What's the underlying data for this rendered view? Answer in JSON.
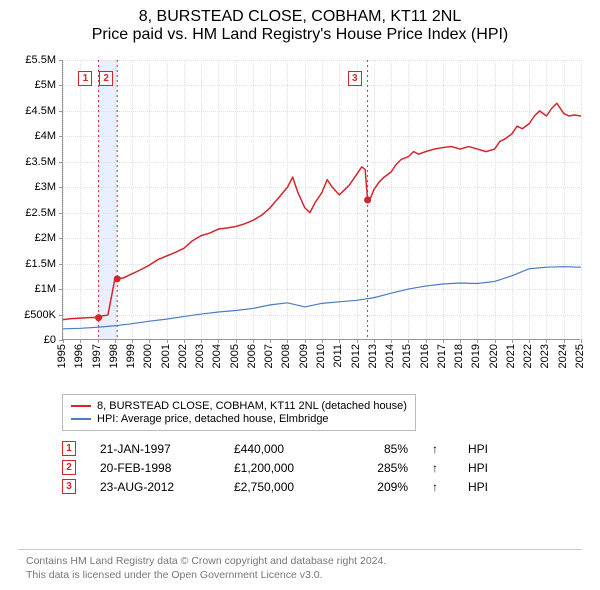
{
  "title": {
    "line1": "8, BURSTEAD CLOSE, COBHAM, KT11 2NL",
    "line2": "Price paid vs. HM Land Registry's House Price Index (HPI)"
  },
  "chart": {
    "type": "line",
    "background_color": "#ffffff",
    "grid_color": "#e0e0e0",
    "axis_color": "#999999",
    "x": {
      "min": 1995,
      "max": 2025,
      "tick_step": 1,
      "label_fontsize": 11
    },
    "y": {
      "min": 0,
      "max": 5500000,
      "tick_step": 500000,
      "tick_labels": [
        "£0",
        "£500K",
        "£1M",
        "£1.5M",
        "£2M",
        "£2.5M",
        "£3M",
        "£3.5M",
        "£4M",
        "£4.5M",
        "£5M",
        "£5.5M"
      ],
      "label_fontsize": 11
    },
    "band": {
      "x_from": 1997.06,
      "x_to": 1998.14,
      "color": "#e8efff"
    },
    "series": [
      {
        "id": "property",
        "label": "8, BURSTEAD CLOSE, COBHAM, KT11 2NL (detached house)",
        "color": "#d4252d",
        "line_width": 1.5,
        "points": [
          [
            1995.0,
            400000
          ],
          [
            1995.5,
            420000
          ],
          [
            1996.0,
            430000
          ],
          [
            1996.5,
            440000
          ],
          [
            1997.0,
            445000
          ],
          [
            1997.06,
            440000
          ],
          [
            1997.2,
            470000
          ],
          [
            1997.6,
            490000
          ],
          [
            1998.0,
            1190000
          ],
          [
            1998.14,
            1200000
          ],
          [
            1998.5,
            1220000
          ],
          [
            1999.0,
            1300000
          ],
          [
            1999.5,
            1380000
          ],
          [
            2000.0,
            1470000
          ],
          [
            2000.5,
            1580000
          ],
          [
            2001.0,
            1650000
          ],
          [
            2001.5,
            1720000
          ],
          [
            2002.0,
            1800000
          ],
          [
            2002.5,
            1950000
          ],
          [
            2003.0,
            2050000
          ],
          [
            2003.5,
            2100000
          ],
          [
            2004.0,
            2180000
          ],
          [
            2004.5,
            2200000
          ],
          [
            2005.0,
            2230000
          ],
          [
            2005.5,
            2280000
          ],
          [
            2006.0,
            2350000
          ],
          [
            2006.5,
            2450000
          ],
          [
            2007.0,
            2600000
          ],
          [
            2007.5,
            2800000
          ],
          [
            2008.0,
            3000000
          ],
          [
            2008.3,
            3200000
          ],
          [
            2008.6,
            2900000
          ],
          [
            2009.0,
            2600000
          ],
          [
            2009.3,
            2500000
          ],
          [
            2009.6,
            2700000
          ],
          [
            2010.0,
            2900000
          ],
          [
            2010.3,
            3150000
          ],
          [
            2010.6,
            3000000
          ],
          [
            2011.0,
            2850000
          ],
          [
            2011.3,
            2950000
          ],
          [
            2011.6,
            3050000
          ],
          [
            2012.0,
            3250000
          ],
          [
            2012.3,
            3400000
          ],
          [
            2012.5,
            3350000
          ],
          [
            2012.64,
            2750000
          ],
          [
            2012.8,
            2780000
          ],
          [
            2013.0,
            2950000
          ],
          [
            2013.3,
            3100000
          ],
          [
            2013.6,
            3200000
          ],
          [
            2014.0,
            3300000
          ],
          [
            2014.3,
            3450000
          ],
          [
            2014.6,
            3550000
          ],
          [
            2015.0,
            3600000
          ],
          [
            2015.3,
            3700000
          ],
          [
            2015.6,
            3650000
          ],
          [
            2016.0,
            3700000
          ],
          [
            2016.5,
            3750000
          ],
          [
            2017.0,
            3780000
          ],
          [
            2017.5,
            3800000
          ],
          [
            2018.0,
            3750000
          ],
          [
            2018.5,
            3800000
          ],
          [
            2019.0,
            3750000
          ],
          [
            2019.5,
            3700000
          ],
          [
            2020.0,
            3750000
          ],
          [
            2020.3,
            3900000
          ],
          [
            2020.6,
            3950000
          ],
          [
            2021.0,
            4050000
          ],
          [
            2021.3,
            4200000
          ],
          [
            2021.6,
            4150000
          ],
          [
            2022.0,
            4250000
          ],
          [
            2022.3,
            4400000
          ],
          [
            2022.6,
            4500000
          ],
          [
            2023.0,
            4400000
          ],
          [
            2023.3,
            4550000
          ],
          [
            2023.6,
            4650000
          ],
          [
            2024.0,
            4450000
          ],
          [
            2024.3,
            4400000
          ],
          [
            2024.6,
            4420000
          ],
          [
            2025.0,
            4400000
          ]
        ],
        "point_markers": [
          {
            "x": 1997.06,
            "y": 440000
          },
          {
            "x": 1998.14,
            "y": 1200000
          },
          {
            "x": 2012.64,
            "y": 2750000
          }
        ],
        "jump_lines": [
          {
            "x": 1997.06,
            "color": "#d4252d"
          },
          {
            "x": 1998.14,
            "color": "#d4252d"
          },
          {
            "x": 2012.64,
            "color": "#d4252d"
          }
        ]
      },
      {
        "id": "hpi",
        "label": "HPI: Average price, detached house, Elmbridge",
        "color": "#4a7bc8",
        "line_width": 1.2,
        "points": [
          [
            1995.0,
            220000
          ],
          [
            1996.0,
            230000
          ],
          [
            1997.0,
            250000
          ],
          [
            1998.0,
            280000
          ],
          [
            1999.0,
            320000
          ],
          [
            2000.0,
            370000
          ],
          [
            2001.0,
            410000
          ],
          [
            2002.0,
            460000
          ],
          [
            2003.0,
            510000
          ],
          [
            2004.0,
            550000
          ],
          [
            2005.0,
            580000
          ],
          [
            2006.0,
            620000
          ],
          [
            2007.0,
            690000
          ],
          [
            2008.0,
            730000
          ],
          [
            2009.0,
            650000
          ],
          [
            2010.0,
            720000
          ],
          [
            2011.0,
            750000
          ],
          [
            2012.0,
            780000
          ],
          [
            2013.0,
            830000
          ],
          [
            2014.0,
            920000
          ],
          [
            2015.0,
            1000000
          ],
          [
            2016.0,
            1060000
          ],
          [
            2017.0,
            1100000
          ],
          [
            2018.0,
            1120000
          ],
          [
            2019.0,
            1110000
          ],
          [
            2020.0,
            1150000
          ],
          [
            2021.0,
            1260000
          ],
          [
            2022.0,
            1400000
          ],
          [
            2023.0,
            1430000
          ],
          [
            2024.0,
            1440000
          ],
          [
            2025.0,
            1430000
          ]
        ]
      }
    ],
    "annotations": [
      {
        "n": "1",
        "x": 1996.3,
        "y_top": 0.04,
        "color": "#d4252d"
      },
      {
        "n": "2",
        "x": 1997.5,
        "y_top": 0.04,
        "color": "#d4252d"
      },
      {
        "n": "3",
        "x": 2011.9,
        "y_top": 0.04,
        "color": "#d4252d"
      }
    ]
  },
  "legend": {
    "items": [
      {
        "color": "#d4252d",
        "label": "8, BURSTEAD CLOSE, COBHAM, KT11 2NL (detached house)"
      },
      {
        "color": "#4a7bc8",
        "label": "HPI: Average price, detached house, Elmbridge"
      }
    ]
  },
  "sales": [
    {
      "n": "1",
      "color": "#d4252d",
      "date": "21-JAN-1997",
      "price": "£440,000",
      "pct": "85%",
      "arrow": "↑",
      "vs": "HPI"
    },
    {
      "n": "2",
      "color": "#d4252d",
      "date": "20-FEB-1998",
      "price": "£1,200,000",
      "pct": "285%",
      "arrow": "↑",
      "vs": "HPI"
    },
    {
      "n": "3",
      "color": "#d4252d",
      "date": "23-AUG-2012",
      "price": "£2,750,000",
      "pct": "209%",
      "arrow": "↑",
      "vs": "HPI"
    }
  ],
  "footer": {
    "line1": "Contains HM Land Registry data © Crown copyright and database right 2024.",
    "line2": "This data is licensed under the Open Government Licence v3.0."
  }
}
